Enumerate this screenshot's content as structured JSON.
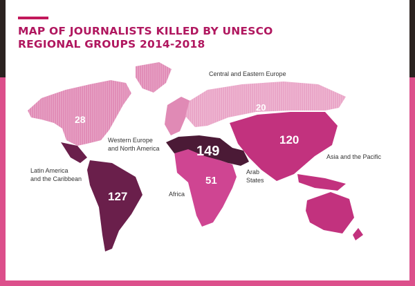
{
  "title": "MAP OF JOURNALISTS KILLED BY UNESCO REGIONAL GROUPS 2014-2018",
  "colors": {
    "accent": "#c2185b",
    "title": "#b0175f",
    "background_band": "#dc4f8b",
    "western_europe_north_america": "#e08ab5",
    "central_eastern_europe": "#e9a3c6",
    "asia_pacific": "#c2327e",
    "africa": "#cf4592",
    "arab_states": "#4b1a36",
    "latin_america_caribbean": "#6a1f4b"
  },
  "regions": [
    {
      "id": "western_europe_north_america",
      "label_lines": [
        "Western Europe",
        "and North America"
      ],
      "count": "28"
    },
    {
      "id": "central_eastern_europe",
      "label_lines": [
        "Central and Eastern Europe"
      ],
      "count": "20"
    },
    {
      "id": "asia_pacific",
      "label_lines": [
        "Asia and the Pacific"
      ],
      "count": "120"
    },
    {
      "id": "arab_states",
      "label_lines": [
        "Arab",
        "States"
      ],
      "count": "149"
    },
    {
      "id": "africa",
      "label_lines": [
        "Africa"
      ],
      "count": "51"
    },
    {
      "id": "latin_america_caribbean",
      "label_lines": [
        "Latin America",
        "and the Caribbean"
      ],
      "count": "127"
    }
  ]
}
